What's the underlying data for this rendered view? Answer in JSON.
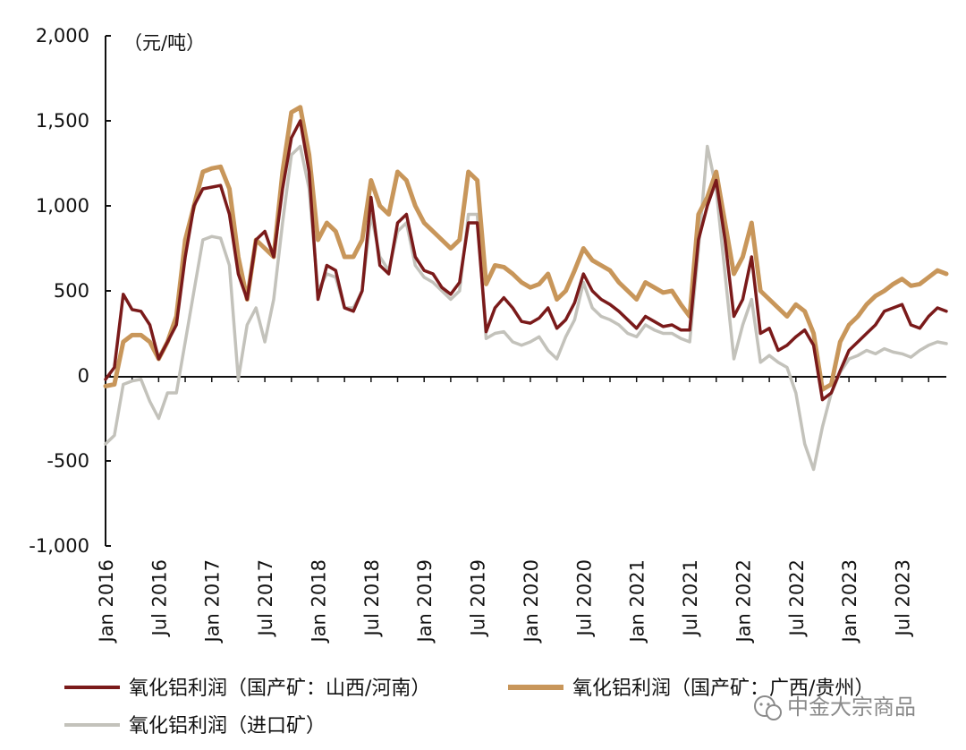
{
  "chart_data": {
    "type": "line",
    "unit_label": "（元/吨）",
    "y_ticks": [
      2000,
      1500,
      1000,
      500,
      0,
      -500,
      -1000
    ],
    "y_tick_labels": [
      "2,000",
      "1,500",
      "1,000",
      "500",
      "0",
      "-500",
      "-1,000"
    ],
    "ylim": [
      -1000,
      2000
    ],
    "x_tick_labels": [
      "Jan 2016",
      "Jul 2016",
      "Jan 2017",
      "Jul 2017",
      "Jan 2018",
      "Jul 2018",
      "Jan 2019",
      "Jul 2019",
      "Jan 2020",
      "Jul 2020",
      "Jan 2021",
      "Jul 2021",
      "Jan 2022",
      "Jul 2022",
      "Jan 2023",
      "Jul 2023"
    ],
    "x_tick_months": [
      "2016-01",
      "2016-07",
      "2017-01",
      "2017-07",
      "2018-01",
      "2018-07",
      "2019-01",
      "2019-07",
      "2020-01",
      "2020-07",
      "2021-01",
      "2021-07",
      "2022-01",
      "2022-07",
      "2023-01",
      "2023-07"
    ],
    "xlim": [
      "2016-01",
      "2023-12"
    ],
    "grid": false,
    "legend_position": "bottom",
    "series": [
      {
        "name": "氧化铝利润（国产矿：山西/河南）",
        "color": "#7a1a1a",
        "x": [
          "2016-01",
          "2016-02",
          "2016-03",
          "2016-04",
          "2016-05",
          "2016-06",
          "2016-07",
          "2016-08",
          "2016-09",
          "2016-10",
          "2016-11",
          "2016-12",
          "2017-01",
          "2017-02",
          "2017-03",
          "2017-04",
          "2017-05",
          "2017-06",
          "2017-07",
          "2017-08",
          "2017-09",
          "2017-10",
          "2017-11",
          "2017-12",
          "2018-01",
          "2018-02",
          "2018-03",
          "2018-04",
          "2018-05",
          "2018-06",
          "2018-07",
          "2018-08",
          "2018-09",
          "2018-10",
          "2018-11",
          "2018-12",
          "2019-01",
          "2019-02",
          "2019-03",
          "2019-04",
          "2019-05",
          "2019-06",
          "2019-07",
          "2019-08",
          "2019-09",
          "2019-10",
          "2019-11",
          "2019-12",
          "2020-01",
          "2020-02",
          "2020-03",
          "2020-04",
          "2020-05",
          "2020-06",
          "2020-07",
          "2020-08",
          "2020-09",
          "2020-10",
          "2020-11",
          "2020-12",
          "2021-01",
          "2021-02",
          "2021-03",
          "2021-04",
          "2021-05",
          "2021-06",
          "2021-07",
          "2021-08",
          "2021-09",
          "2021-10",
          "2021-11",
          "2021-12",
          "2022-01",
          "2022-02",
          "2022-03",
          "2022-04",
          "2022-05",
          "2022-06",
          "2022-07",
          "2022-08",
          "2022-09",
          "2022-10",
          "2022-11",
          "2022-12",
          "2023-01",
          "2023-02",
          "2023-03",
          "2023-04",
          "2023-05",
          "2023-06",
          "2023-07",
          "2023-08",
          "2023-09",
          "2023-10",
          "2023-11",
          "2023-12"
        ],
        "values": [
          -20,
          50,
          480,
          390,
          380,
          300,
          100,
          200,
          300,
          700,
          1000,
          1100,
          1110,
          1120,
          950,
          600,
          450,
          800,
          850,
          700,
          1100,
          1400,
          1500,
          1200,
          450,
          650,
          620,
          400,
          380,
          500,
          1050,
          650,
          600,
          900,
          950,
          700,
          620,
          600,
          520,
          480,
          550,
          900,
          900,
          260,
          400,
          460,
          400,
          320,
          310,
          340,
          400,
          280,
          330,
          430,
          600,
          500,
          450,
          420,
          380,
          330,
          280,
          350,
          320,
          290,
          300,
          270,
          270,
          800,
          1000,
          1150,
          800,
          350,
          450,
          700,
          250,
          280,
          150,
          180,
          230,
          270,
          180,
          -140,
          -100,
          30,
          150,
          200,
          250,
          300,
          380,
          400,
          420,
          300,
          280,
          350,
          400,
          380
        ]
      },
      {
        "name": "氧化铝利润（国产矿：广西/贵州）",
        "color": "#c8965a",
        "x": [
          "2016-01",
          "2016-02",
          "2016-03",
          "2016-04",
          "2016-05",
          "2016-06",
          "2016-07",
          "2016-08",
          "2016-09",
          "2016-10",
          "2016-11",
          "2016-12",
          "2017-01",
          "2017-02",
          "2017-03",
          "2017-04",
          "2017-05",
          "2017-06",
          "2017-07",
          "2017-08",
          "2017-09",
          "2017-10",
          "2017-11",
          "2017-12",
          "2018-01",
          "2018-02",
          "2018-03",
          "2018-04",
          "2018-05",
          "2018-06",
          "2018-07",
          "2018-08",
          "2018-09",
          "2018-10",
          "2018-11",
          "2018-12",
          "2019-01",
          "2019-02",
          "2019-03",
          "2019-04",
          "2019-05",
          "2019-06",
          "2019-07",
          "2019-08",
          "2019-09",
          "2019-10",
          "2019-11",
          "2019-12",
          "2020-01",
          "2020-02",
          "2020-03",
          "2020-04",
          "2020-05",
          "2020-06",
          "2020-07",
          "2020-08",
          "2020-09",
          "2020-10",
          "2020-11",
          "2020-12",
          "2021-01",
          "2021-02",
          "2021-03",
          "2021-04",
          "2021-05",
          "2021-06",
          "2021-07",
          "2021-08",
          "2021-09",
          "2021-10",
          "2021-11",
          "2021-12",
          "2022-01",
          "2022-02",
          "2022-03",
          "2022-04",
          "2022-05",
          "2022-06",
          "2022-07",
          "2022-08",
          "2022-09",
          "2022-10",
          "2022-11",
          "2022-12",
          "2023-01",
          "2023-02",
          "2023-03",
          "2023-04",
          "2023-05",
          "2023-06",
          "2023-07",
          "2023-08",
          "2023-09",
          "2023-10",
          "2023-11",
          "2023-12"
        ],
        "values": [
          -60,
          -50,
          200,
          240,
          240,
          200,
          100,
          200,
          350,
          800,
          1000,
          1200,
          1220,
          1230,
          1100,
          700,
          450,
          800,
          750,
          700,
          1200,
          1550,
          1580,
          1300,
          800,
          900,
          850,
          700,
          700,
          800,
          1150,
          1000,
          950,
          1200,
          1150,
          1000,
          900,
          850,
          800,
          750,
          800,
          1200,
          1150,
          540,
          650,
          640,
          600,
          550,
          520,
          540,
          600,
          450,
          500,
          620,
          750,
          680,
          650,
          620,
          550,
          500,
          450,
          550,
          520,
          490,
          500,
          420,
          350,
          950,
          1050,
          1200,
          900,
          600,
          700,
          900,
          500,
          450,
          400,
          350,
          420,
          380,
          250,
          -80,
          -50,
          200,
          300,
          350,
          420,
          470,
          500,
          540,
          570,
          530,
          540,
          580,
          620,
          600
        ]
      },
      {
        "name": "氧化铝利润（进口矿）",
        "color": "#c3c2bb",
        "x": [
          "2016-01",
          "2016-02",
          "2016-03",
          "2016-04",
          "2016-05",
          "2016-06",
          "2016-07",
          "2016-08",
          "2016-09",
          "2016-10",
          "2016-11",
          "2016-12",
          "2017-01",
          "2017-02",
          "2017-03",
          "2017-04",
          "2017-05",
          "2017-06",
          "2017-07",
          "2017-08",
          "2017-09",
          "2017-10",
          "2017-11",
          "2017-12",
          "2018-01",
          "2018-02",
          "2018-03",
          "2018-04",
          "2018-05",
          "2018-06",
          "2018-07",
          "2018-08",
          "2018-09",
          "2018-10",
          "2018-11",
          "2018-12",
          "2019-01",
          "2019-02",
          "2019-03",
          "2019-04",
          "2019-05",
          "2019-06",
          "2019-07",
          "2019-08",
          "2019-09",
          "2019-10",
          "2019-11",
          "2019-12",
          "2020-01",
          "2020-02",
          "2020-03",
          "2020-04",
          "2020-05",
          "2020-06",
          "2020-07",
          "2020-08",
          "2020-09",
          "2020-10",
          "2020-11",
          "2020-12",
          "2021-01",
          "2021-02",
          "2021-03",
          "2021-04",
          "2021-05",
          "2021-06",
          "2021-07",
          "2021-08",
          "2021-09",
          "2021-10",
          "2021-11",
          "2021-12",
          "2022-01",
          "2022-02",
          "2022-03",
          "2022-04",
          "2022-05",
          "2022-06",
          "2022-07",
          "2022-08",
          "2022-09",
          "2022-10",
          "2022-11",
          "2022-12",
          "2023-01",
          "2023-02",
          "2023-03",
          "2023-04",
          "2023-05",
          "2023-06",
          "2023-07",
          "2023-08",
          "2023-09",
          "2023-10",
          "2023-11",
          "2023-12"
        ],
        "values": [
          -400,
          -350,
          -50,
          -30,
          -20,
          -150,
          -250,
          -100,
          -100,
          200,
          500,
          800,
          820,
          810,
          650,
          -20,
          300,
          400,
          200,
          450,
          900,
          1300,
          1350,
          1100,
          500,
          600,
          580,
          400,
          400,
          500,
          950,
          700,
          620,
          850,
          900,
          650,
          580,
          550,
          500,
          450,
          500,
          950,
          950,
          220,
          250,
          260,
          200,
          180,
          200,
          230,
          150,
          100,
          230,
          330,
          550,
          400,
          350,
          330,
          300,
          250,
          230,
          300,
          270,
          250,
          250,
          220,
          200,
          750,
          1350,
          1100,
          600,
          100,
          300,
          450,
          80,
          120,
          80,
          50,
          -100,
          -400,
          -550,
          -300,
          -100,
          20,
          100,
          120,
          150,
          130,
          160,
          140,
          130,
          110,
          150,
          180,
          200,
          190
        ]
      }
    ]
  },
  "watermark": {
    "text": "中金大宗商品",
    "icon": "wechat-icon"
  }
}
